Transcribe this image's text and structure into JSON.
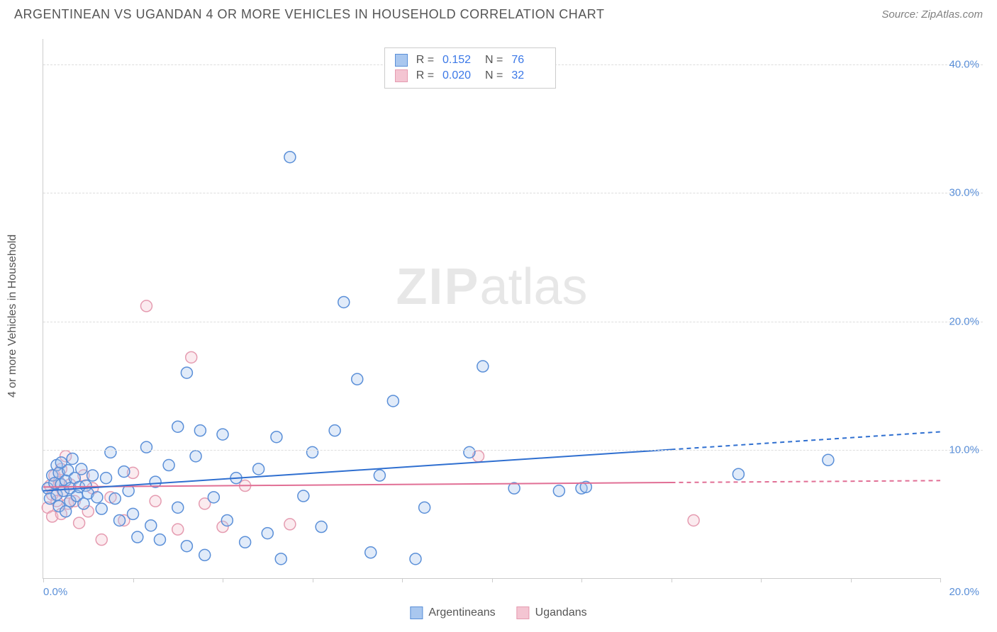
{
  "header": {
    "title": "ARGENTINEAN VS UGANDAN 4 OR MORE VEHICLES IN HOUSEHOLD CORRELATION CHART",
    "source_prefix": "Source: ",
    "source_name": "ZipAtlas.com"
  },
  "chart": {
    "type": "scatter",
    "ylabel": "4 or more Vehicles in Household",
    "xlim": [
      0,
      20
    ],
    "ylim": [
      0,
      42
    ],
    "x_ticks": [
      0,
      2,
      4,
      6,
      8,
      10,
      12,
      14,
      16,
      18,
      20
    ],
    "x_tick_labels": {
      "0": "0.0%",
      "20": "20.0%"
    },
    "y_gridlines": [
      10,
      20,
      30,
      40
    ],
    "y_tick_labels": {
      "10": "10.0%",
      "20": "20.0%",
      "30": "30.0%",
      "40": "40.0%"
    },
    "background_color": "#ffffff",
    "grid_color": "#dddddd",
    "axis_color": "#cccccc",
    "marker_radius": 8,
    "marker_stroke_width": 1.5,
    "marker_fill_opacity": 0.35,
    "trend_solid_until_x": 14,
    "trend_line_width": 2,
    "watermark": {
      "bold": "ZIP",
      "rest": "atlas",
      "color": "#bbbbbb",
      "opacity": 0.35,
      "fontsize": 72
    }
  },
  "series": {
    "argentineans": {
      "label": "Argentineans",
      "color_stroke": "#5a8fd8",
      "color_fill": "#a9c7ef",
      "trend_color": "#2f6fd0",
      "R": "0.152",
      "N": "76",
      "trend": {
        "x1": 0,
        "y1": 6.8,
        "x2": 20,
        "y2": 11.4
      },
      "points": [
        [
          0.1,
          7.0
        ],
        [
          0.15,
          6.2
        ],
        [
          0.2,
          8.0
        ],
        [
          0.25,
          7.4
        ],
        [
          0.3,
          6.5
        ],
        [
          0.3,
          8.8
        ],
        [
          0.35,
          8.2
        ],
        [
          0.35,
          5.6
        ],
        [
          0.4,
          7.3
        ],
        [
          0.4,
          9.0
        ],
        [
          0.45,
          6.8
        ],
        [
          0.5,
          7.6
        ],
        [
          0.5,
          5.2
        ],
        [
          0.55,
          8.4
        ],
        [
          0.6,
          7.0
        ],
        [
          0.6,
          6.0
        ],
        [
          0.65,
          9.3
        ],
        [
          0.7,
          7.8
        ],
        [
          0.75,
          6.4
        ],
        [
          0.8,
          7.1
        ],
        [
          0.85,
          8.5
        ],
        [
          0.9,
          5.8
        ],
        [
          0.95,
          7.2
        ],
        [
          1.0,
          6.6
        ],
        [
          1.1,
          8.0
        ],
        [
          1.2,
          6.3
        ],
        [
          1.3,
          5.4
        ],
        [
          1.4,
          7.8
        ],
        [
          1.5,
          9.8
        ],
        [
          1.6,
          6.2
        ],
        [
          1.7,
          4.5
        ],
        [
          1.8,
          8.3
        ],
        [
          1.9,
          6.8
        ],
        [
          2.0,
          5.0
        ],
        [
          2.1,
          3.2
        ],
        [
          2.3,
          10.2
        ],
        [
          2.4,
          4.1
        ],
        [
          2.5,
          7.5
        ],
        [
          2.6,
          3.0
        ],
        [
          2.8,
          8.8
        ],
        [
          3.0,
          11.8
        ],
        [
          3.0,
          5.5
        ],
        [
          3.2,
          16.0
        ],
        [
          3.2,
          2.5
        ],
        [
          3.4,
          9.5
        ],
        [
          3.5,
          11.5
        ],
        [
          3.6,
          1.8
        ],
        [
          3.8,
          6.3
        ],
        [
          4.0,
          11.2
        ],
        [
          4.1,
          4.5
        ],
        [
          4.3,
          7.8
        ],
        [
          4.5,
          2.8
        ],
        [
          4.8,
          8.5
        ],
        [
          5.0,
          3.5
        ],
        [
          5.2,
          11.0
        ],
        [
          5.3,
          1.5
        ],
        [
          5.5,
          32.8
        ],
        [
          5.8,
          6.4
        ],
        [
          6.0,
          9.8
        ],
        [
          6.2,
          4.0
        ],
        [
          6.5,
          11.5
        ],
        [
          6.7,
          21.5
        ],
        [
          7.0,
          15.5
        ],
        [
          7.3,
          2.0
        ],
        [
          7.5,
          8.0
        ],
        [
          7.8,
          13.8
        ],
        [
          8.3,
          1.5
        ],
        [
          8.5,
          5.5
        ],
        [
          9.5,
          9.8
        ],
        [
          9.8,
          16.5
        ],
        [
          10.5,
          7.0
        ],
        [
          11.5,
          6.8
        ],
        [
          12.0,
          7.0
        ],
        [
          12.1,
          7.1
        ],
        [
          15.5,
          8.1
        ],
        [
          17.5,
          9.2
        ]
      ]
    },
    "ugandans": {
      "label": "Ugandans",
      "color_stroke": "#e59bb0",
      "color_fill": "#f4c5d2",
      "trend_color": "#e16f95",
      "R": "0.020",
      "N": "32",
      "trend": {
        "x1": 0,
        "y1": 7.1,
        "x2": 20,
        "y2": 7.6
      },
      "points": [
        [
          0.1,
          5.5
        ],
        [
          0.15,
          7.2
        ],
        [
          0.2,
          4.8
        ],
        [
          0.2,
          6.5
        ],
        [
          0.25,
          8.0
        ],
        [
          0.3,
          6.0
        ],
        [
          0.35,
          7.5
        ],
        [
          0.4,
          5.0
        ],
        [
          0.4,
          8.5
        ],
        [
          0.45,
          6.8
        ],
        [
          0.5,
          9.5
        ],
        [
          0.55,
          5.8
        ],
        [
          0.6,
          7.3
        ],
        [
          0.7,
          6.0
        ],
        [
          0.8,
          4.3
        ],
        [
          0.9,
          8.0
        ],
        [
          1.0,
          5.2
        ],
        [
          1.1,
          7.0
        ],
        [
          1.3,
          3.0
        ],
        [
          1.5,
          6.3
        ],
        [
          1.8,
          4.5
        ],
        [
          2.0,
          8.2
        ],
        [
          2.3,
          21.2
        ],
        [
          2.5,
          6.0
        ],
        [
          3.0,
          3.8
        ],
        [
          3.3,
          17.2
        ],
        [
          3.6,
          5.8
        ],
        [
          4.0,
          4.0
        ],
        [
          4.5,
          7.2
        ],
        [
          5.5,
          4.2
        ],
        [
          9.7,
          9.5
        ],
        [
          14.5,
          4.5
        ]
      ]
    }
  },
  "legend_stats": {
    "R_label": "R =",
    "N_label": "N ="
  }
}
